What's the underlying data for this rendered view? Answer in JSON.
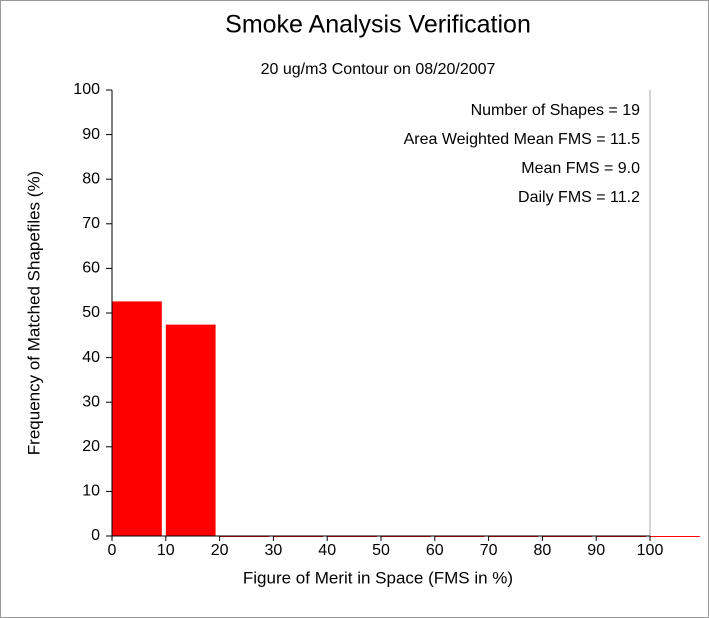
{
  "chart_data": {
    "type": "histogram",
    "title": "Smoke Analysis Verification",
    "subtitle": "20 ug/m3 Contour on 08/20/2007",
    "xlabel": "Figure of Merit in Space (FMS in %)",
    "ylabel": "Frequency of Matched Shapefiles (%)",
    "bins": [
      0,
      10,
      20,
      30,
      40,
      50,
      60,
      70,
      80,
      90,
      100,
      110
    ],
    "values": [
      52.6,
      47.4,
      0,
      0,
      0,
      0,
      0,
      0,
      0,
      0,
      0
    ],
    "color": "#ff0000",
    "xlim": [
      0,
      100
    ],
    "xticks": [
      0,
      10,
      20,
      30,
      40,
      50,
      60,
      70,
      80,
      90,
      100
    ],
    "ylim": [
      0,
      100
    ],
    "yticks": [
      0,
      10,
      20,
      30,
      40,
      50,
      60,
      70,
      80,
      90,
      100
    ],
    "annotations": [
      "Number of Shapes = 19",
      "Area Weighted Mean FMS = 11.5",
      "Mean FMS = 9.0",
      "Daily FMS = 11.2"
    ]
  }
}
